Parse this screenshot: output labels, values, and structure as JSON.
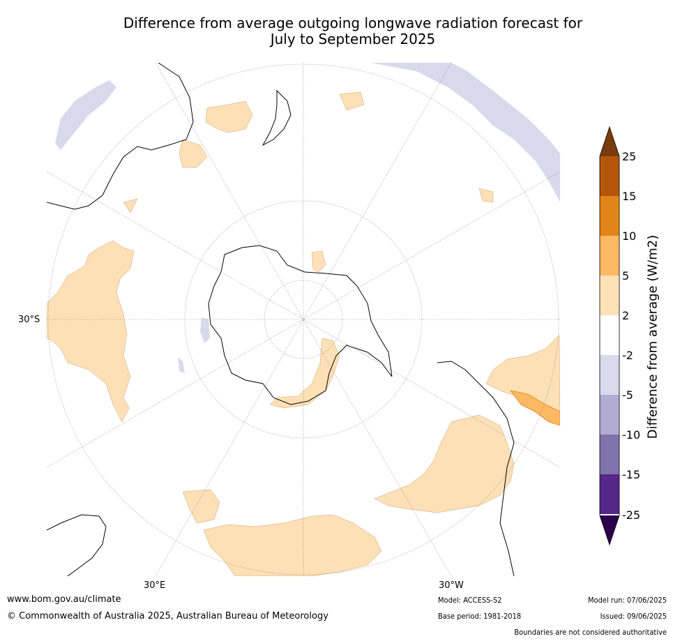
{
  "title_line1": "Difference from average outgoing longwave radiation forecast for",
  "title_line2": "July to September 2025",
  "map": {
    "labels": {
      "lat_30s": "30°S",
      "lon_30e": "30°E",
      "lon_30w": "30°W"
    }
  },
  "legend": {
    "label": "Difference from average (W/m2)",
    "ticks": [
      "25",
      "15",
      "10",
      "5",
      "2",
      "-2",
      "-5",
      "-10",
      "-15",
      "-25"
    ],
    "colors": {
      "above_25": "#7a3b0c",
      "15_25": "#b3560a",
      "10_15": "#e38419",
      "5_10": "#fdb863",
      "2_5": "#fde0b6",
      "neutral": "#ffffff",
      "m5_m2": "#d8daeb",
      "m10_m5": "#b2abd2",
      "m15_m10": "#8073ac",
      "m25_m15": "#542788",
      "below_m25": "#2d004b"
    }
  },
  "footer": {
    "url": "www.bom.gov.au/climate",
    "copyright": "© Commonwealth of Australia 2025, Australian Bureau of Meteorology",
    "model": "Model: ACCESS-S2",
    "base_period": "Base period: 1981-2018",
    "model_run": "Model run: 07/06/2025",
    "issued": "Issued: 09/06/2025",
    "disclaimer": "Boundaries are not considered authoritative"
  }
}
